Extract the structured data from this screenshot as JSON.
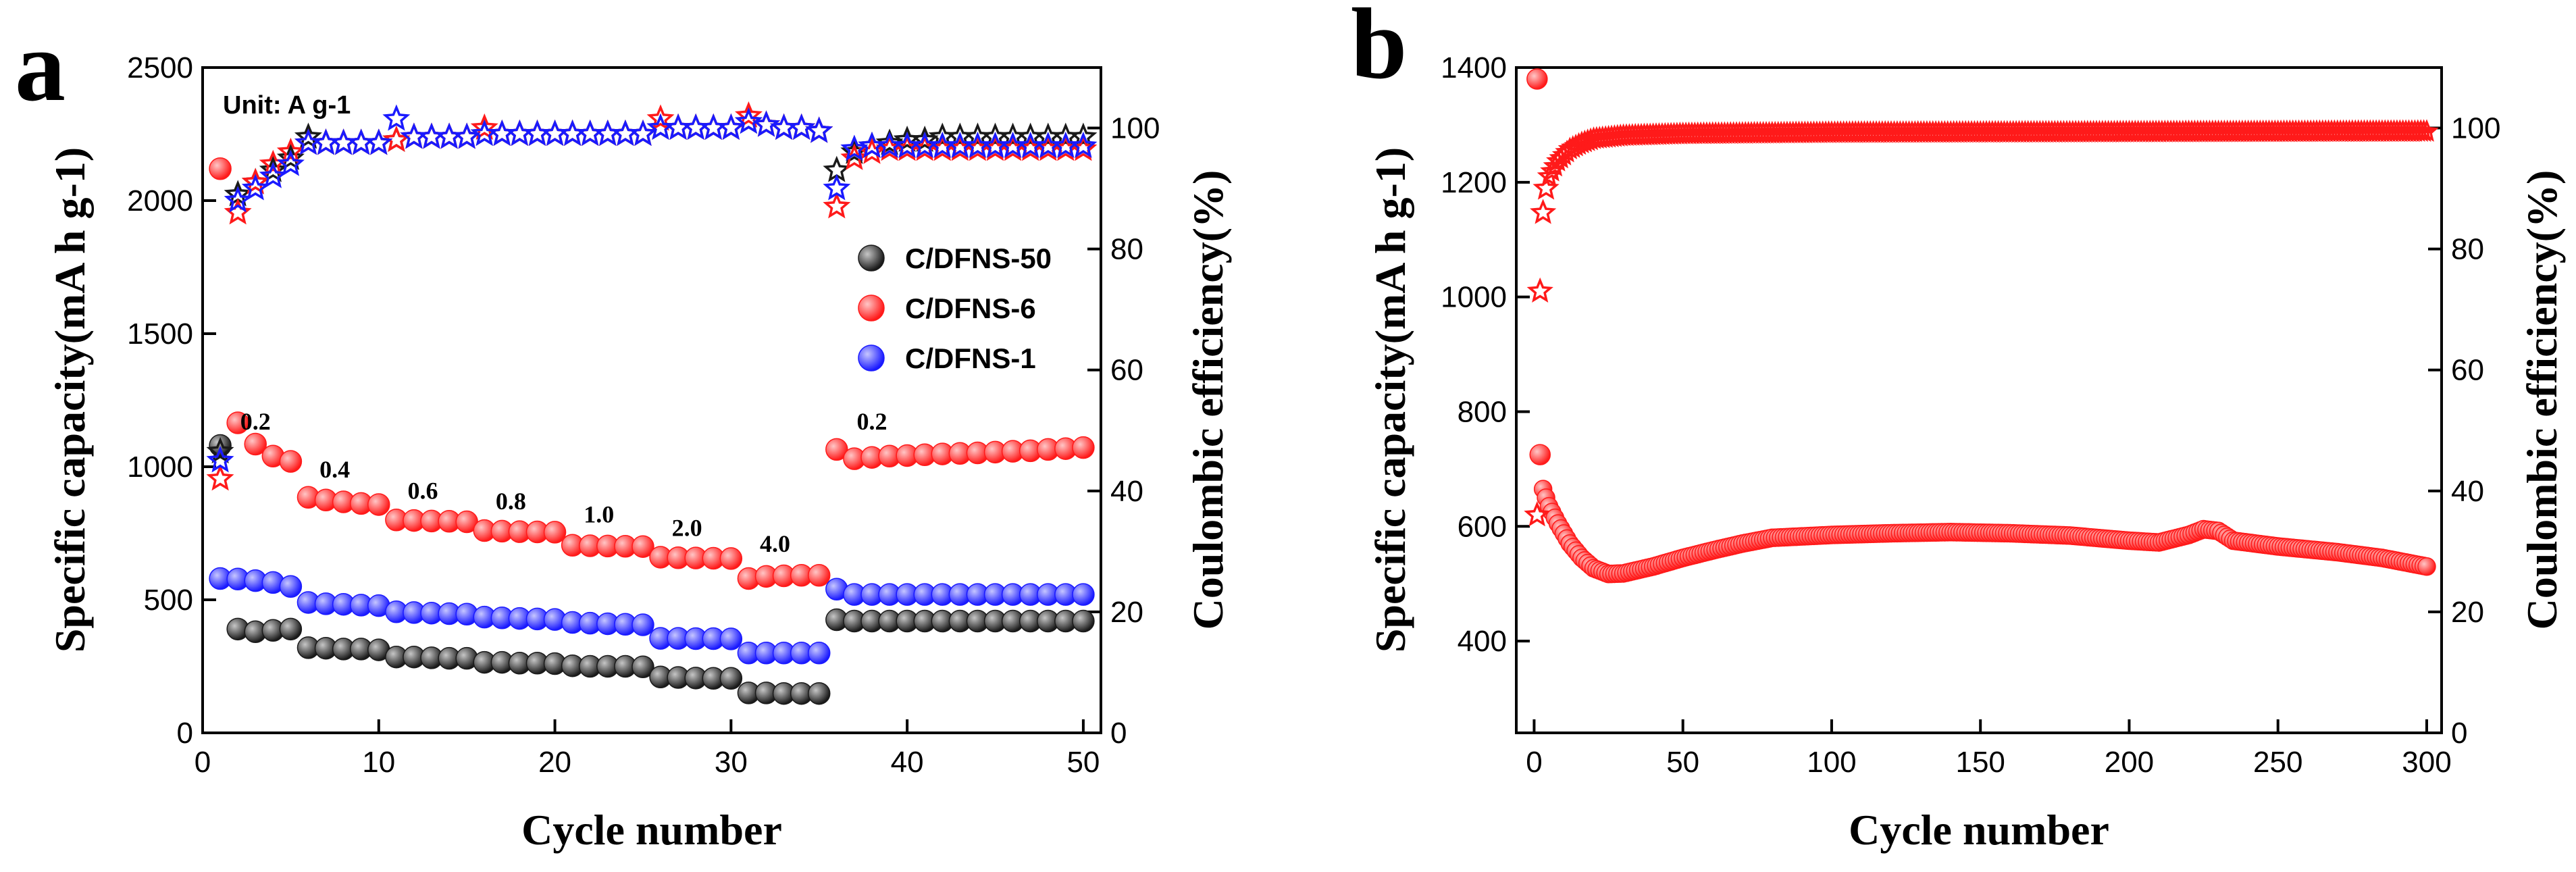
{
  "colors": {
    "black_series": "#1a1a1a",
    "red_series": "#ff1a1a",
    "blue_series": "#1a1aff",
    "axis": "#000000"
  },
  "chart_data": [
    {
      "panel": "a",
      "type": "scatter",
      "xlabel": "Cycle number",
      "ylabel_left": "Specific capacity(mA h g-1)",
      "ylabel_right": "Coulombic efficiency(%)",
      "xlim": [
        0,
        51
      ],
      "ylim_left": [
        0,
        2500
      ],
      "ylim_right": [
        0,
        110
      ],
      "x_ticks": [
        "0",
        "10",
        "20",
        "30",
        "40",
        "50"
      ],
      "y_ticks_left": [
        "0",
        "500",
        "1000",
        "1500",
        "2000",
        "2500"
      ],
      "y_ticks_right": [
        "0",
        "20",
        "40",
        "60",
        "80",
        "100"
      ],
      "unit_label": "Unit: A g-1",
      "rate_labels": [
        {
          "text": "0.2",
          "x": 3.0,
          "y": 1140
        },
        {
          "text": "0.4",
          "x": 7.5,
          "y": 960
        },
        {
          "text": "0.6",
          "x": 12.5,
          "y": 880
        },
        {
          "text": "0.8",
          "x": 17.5,
          "y": 840
        },
        {
          "text": "1.0",
          "x": 22.5,
          "y": 790
        },
        {
          "text": "2.0",
          "x": 27.5,
          "y": 740
        },
        {
          "text": "4.0",
          "x": 32.5,
          "y": 680
        },
        {
          "text": "0.2",
          "x": 38.0,
          "y": 1140
        }
      ],
      "legend": {
        "position": "middle-right",
        "entries": [
          "C/DFNS-50",
          "C/DFNS-6",
          "C/DFNS-1"
        ]
      },
      "series": [
        {
          "name": "C/DFNS-50",
          "color_key": "black_series",
          "capacity": [
            1080,
            390,
            380,
            385,
            390,
            320,
            318,
            315,
            315,
            312,
            285,
            285,
            282,
            280,
            280,
            265,
            265,
            262,
            262,
            260,
            252,
            250,
            250,
            250,
            248,
            210,
            208,
            206,
            205,
            205,
            150,
            150,
            148,
            148,
            148,
            425,
            420,
            420,
            420,
            420,
            420,
            420,
            420,
            420,
            420,
            420,
            420,
            420,
            420,
            420
          ],
          "efficiency": [
            46.5,
            89,
            91,
            93,
            95,
            98.5,
            97.5,
            97.5,
            97.5,
            97.5,
            98,
            98.5,
            98.5,
            98.5,
            98.5,
            99,
            99,
            99,
            99,
            99,
            99,
            99,
            99,
            99,
            99,
            100,
            100,
            100,
            100,
            100,
            101,
            100.5,
            100,
            100,
            99.5,
            93,
            96,
            97,
            97.5,
            98,
            98,
            98.5,
            98.5,
            98.5,
            98.5,
            98.5,
            98.5,
            98.5,
            98.5,
            98.5
          ]
        },
        {
          "name": "C/DFNS-6",
          "color_key": "red_series",
          "capacity": [
            2120,
            1165,
            1085,
            1040,
            1020,
            885,
            875,
            868,
            862,
            858,
            800,
            798,
            796,
            795,
            793,
            760,
            758,
            756,
            755,
            754,
            705,
            703,
            702,
            701,
            700,
            660,
            658,
            657,
            656,
            655,
            580,
            588,
            590,
            592,
            592,
            1065,
            1030,
            1035,
            1040,
            1042,
            1045,
            1048,
            1050,
            1052,
            1055,
            1058,
            1060,
            1065,
            1068,
            1072
          ],
          "efficiency": [
            42,
            86,
            91,
            94,
            96,
            97.5,
            97.5,
            97.5,
            97.5,
            97.5,
            98,
            98.5,
            98.5,
            98.5,
            98.5,
            100,
            99,
            99,
            99,
            99,
            99,
            99,
            99,
            99,
            99,
            101.5,
            100,
            100,
            100,
            100,
            102,
            100.5,
            100,
            100,
            99.5,
            87,
            95,
            96,
            96.5,
            96.5,
            96.5,
            96.5,
            96.5,
            96.5,
            96.5,
            96.5,
            96.5,
            96.5,
            96.5,
            96.5
          ]
        },
        {
          "name": "C/DFNS-1",
          "color_key": "blue_series",
          "capacity": [
            580,
            578,
            572,
            565,
            550,
            490,
            485,
            483,
            480,
            478,
            455,
            452,
            450,
            448,
            446,
            435,
            432,
            430,
            428,
            426,
            415,
            412,
            410,
            408,
            406,
            355,
            355,
            354,
            354,
            353,
            300,
            300,
            300,
            300,
            300,
            540,
            520,
            520,
            520,
            520,
            520,
            520,
            520,
            520,
            520,
            520,
            520,
            520,
            520,
            520
          ],
          "efficiency": [
            45,
            88,
            90,
            92,
            94,
            97.5,
            97.5,
            97.5,
            97.5,
            97.5,
            101.5,
            98.5,
            98.5,
            98.5,
            98.5,
            99,
            99,
            99,
            99,
            99,
            99,
            99,
            99,
            99,
            99,
            100,
            100,
            100,
            100,
            100,
            101,
            100.5,
            100,
            100,
            99.5,
            90,
            96.5,
            97,
            97,
            97,
            97,
            97,
            97,
            97,
            97,
            97,
            97,
            97,
            97,
            97
          ]
        }
      ]
    },
    {
      "panel": "b",
      "type": "scatter",
      "xlabel": "Cycle number",
      "ylabel_left": "Specific capacity(mA h g-1)",
      "ylabel_right": "Coulombic efficiency(%)",
      "xlim": [
        -6,
        305
      ],
      "ylim_left": [
        240,
        1400
      ],
      "ylim_right": [
        0,
        110
      ],
      "x_ticks": [
        "0",
        "50",
        "100",
        "150",
        "200",
        "250",
        "300"
      ],
      "y_ticks_left": [
        "400",
        "600",
        "800",
        "1000",
        "1200",
        "1400"
      ],
      "y_ticks_right": [
        "0",
        "20",
        "40",
        "60",
        "80",
        "100"
      ],
      "series": [
        {
          "name": "C/DFNS-6",
          "color_key": "red_series",
          "capacity_first": [
            1380,
            725
          ],
          "capacity_curve": [
            [
              3,
              665
            ],
            [
              5,
              635
            ],
            [
              8,
              605
            ],
            [
              12,
              570
            ],
            [
              16,
              545
            ],
            [
              20,
              527
            ],
            [
              25,
              517
            ],
            [
              30,
              518
            ],
            [
              40,
              530
            ],
            [
              50,
              545
            ],
            [
              60,
              558
            ],
            [
              70,
              570
            ],
            [
              80,
              580
            ],
            [
              100,
              585
            ],
            [
              120,
              588
            ],
            [
              140,
              590
            ],
            [
              160,
              588
            ],
            [
              180,
              584
            ],
            [
              200,
              575
            ],
            [
              210,
              572
            ],
            [
              220,
              585
            ],
            [
              225,
              595
            ],
            [
              230,
              592
            ],
            [
              235,
              575
            ],
            [
              250,
              565
            ],
            [
              270,
              555
            ],
            [
              285,
              545
            ],
            [
              300,
              530
            ]
          ],
          "efficiency_first": [
            36,
            73,
            86,
            90
          ],
          "efficiency_curve": [
            [
              5,
              92
            ],
            [
              8,
              94.5
            ],
            [
              12,
              96.5
            ],
            [
              16,
              97.5
            ],
            [
              20,
              98.2
            ],
            [
              30,
              98.7
            ],
            [
              50,
              99
            ],
            [
              100,
              99.2
            ],
            [
              200,
              99.3
            ],
            [
              300,
              99.4
            ]
          ]
        }
      ]
    }
  ]
}
